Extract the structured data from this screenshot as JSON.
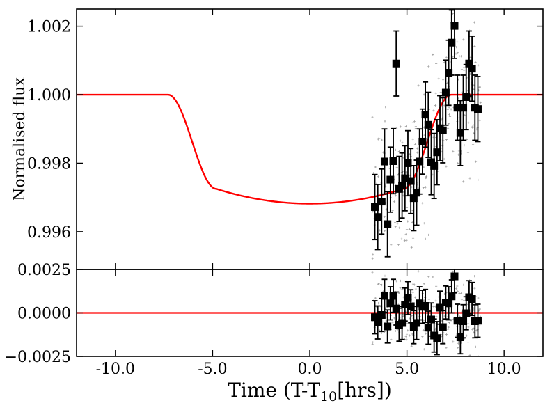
{
  "chart_data": {
    "type": "scatter",
    "xlabel": "Time (T-T",
    "xlabel_sub": "10",
    "xlabel_suffix": "[hrs])",
    "xlim": [
      -12,
      12
    ],
    "x_ticks": [
      -10,
      -5,
      0,
      5,
      10
    ],
    "x_tick_labels": [
      "-10.0",
      "-5.0",
      "0.0",
      "5.0",
      "10.0"
    ],
    "top_panel": {
      "ylabel": "Normalised flux",
      "ylim": [
        0.9949,
        1.0025
      ],
      "y_ticks": [
        0.996,
        0.998,
        1.0,
        1.002
      ],
      "y_tick_labels": [
        "0.996",
        "0.998",
        "1.000",
        "1.002"
      ],
      "model": {
        "name": "transit model",
        "color": "#ff0000",
        "t_start": -7.3,
        "t_end": 7.3,
        "ingress_end": -4.8,
        "egress_start": 4.8,
        "depth_center": 0.99682,
        "depth_edge": 0.99725,
        "baseline": 1.0
      },
      "binned": {
        "name": "binned data",
        "color": "#000000",
        "x": [
          3.35,
          3.5,
          3.7,
          3.85,
          4.0,
          4.15,
          4.3,
          4.45,
          4.6,
          4.75,
          4.9,
          5.05,
          5.2,
          5.35,
          5.5,
          5.65,
          5.8,
          5.95,
          6.1,
          6.25,
          6.4,
          6.55,
          6.7,
          6.85,
          7.0,
          7.15,
          7.3,
          7.45,
          7.6,
          7.75,
          7.9,
          8.05,
          8.2,
          8.35,
          8.5,
          8.65
        ],
        "y": [
          0.99672,
          0.99643,
          0.99688,
          0.99805,
          0.99622,
          0.99752,
          0.99806,
          1.00091,
          0.99725,
          0.99735,
          0.99756,
          0.998,
          0.99748,
          0.99698,
          0.99714,
          0.99805,
          0.99863,
          0.99942,
          0.99912,
          0.99803,
          0.99792,
          0.99832,
          0.99902,
          0.99896,
          1.00006,
          1.00064,
          1.00152,
          1.00201,
          0.99962,
          0.99888,
          0.99962,
          0.99993,
          1.00091,
          1.00076,
          0.99962,
          0.99958
        ],
        "err": 0.00095
      }
    },
    "bottom_panel": {
      "ylim": [
        -0.0025,
        0.0025
      ],
      "y_ticks": [
        -0.0025,
        0.0,
        0.0025
      ],
      "y_tick_labels": [
        "−0.0025",
        "0.0000",
        "0.0025"
      ],
      "zero_line_color": "#ff0000",
      "residuals": {
        "x": [
          3.35,
          3.5,
          3.7,
          3.85,
          4.0,
          4.15,
          4.3,
          4.45,
          4.6,
          4.75,
          4.9,
          5.05,
          5.2,
          5.35,
          5.5,
          5.65,
          5.8,
          5.95,
          6.1,
          6.25,
          6.4,
          6.55,
          6.7,
          6.85,
          7.0,
          7.15,
          7.3,
          7.45,
          7.6,
          7.75,
          7.9,
          8.05,
          8.2,
          8.35,
          8.5,
          8.65
        ],
        "y": [
          -0.00025,
          -0.00055,
          -0.00012,
          0.00098,
          -0.00078,
          0.00055,
          0.00098,
          0.00025,
          -0.00068,
          -0.00058,
          0.00048,
          0.00085,
          0.00038,
          -0.00082,
          -0.00058,
          0.00055,
          0.00035,
          0.0004,
          -0.00085,
          -0.00038,
          -0.0013,
          -0.00145,
          0.0003,
          -0.00082,
          0.0006,
          0.00055,
          0.00095,
          0.0021,
          -0.00045,
          -0.0014,
          -0.00048,
          -2e-05,
          0.0009,
          0.0008,
          -0.00048,
          -0.00045
        ],
        "err": 0.00095
      }
    }
  }
}
